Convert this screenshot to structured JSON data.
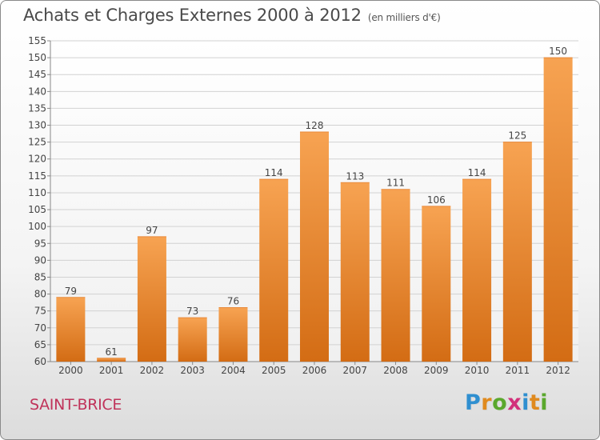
{
  "title": "Achats et Charges Externes 2000 à 2012",
  "subtitle": "(en milliers d'€)",
  "city": "SAINT-BRICE",
  "logo": {
    "text": "Proxiti",
    "letters": [
      {
        "ch": "P",
        "color": "#2f8fd0"
      },
      {
        "ch": "r",
        "color": "#e08a1e"
      },
      {
        "ch": "o",
        "color": "#5aa82d"
      },
      {
        "ch": "x",
        "color": "#d22f7a"
      },
      {
        "ch": "i",
        "color": "#2f8fd0"
      },
      {
        "ch": "t",
        "color": "#e08a1e"
      },
      {
        "ch": "i",
        "color": "#5aa82d"
      }
    ]
  },
  "colors": {
    "bar_top": "#f7a352",
    "bar_bottom": "#d36c14",
    "grid": "#d2d2d2",
    "axis_text": "#444444",
    "city_text": "#c0335a"
  },
  "chart_data": {
    "type": "bar",
    "title": "Achats et Charges Externes 2000 à 2012",
    "subtitle": "(en milliers d'€)",
    "categories": [
      "2000",
      "2001",
      "2002",
      "2003",
      "2004",
      "2005",
      "2006",
      "2007",
      "2008",
      "2009",
      "2010",
      "2011",
      "2012"
    ],
    "values": [
      79,
      61,
      97,
      73,
      76,
      114,
      128,
      113,
      111,
      106,
      114,
      125,
      150
    ],
    "ylim": [
      60,
      155
    ],
    "yticks": [
      60,
      65,
      70,
      75,
      80,
      85,
      90,
      95,
      100,
      105,
      110,
      115,
      120,
      125,
      130,
      135,
      140,
      145,
      150,
      155
    ],
    "grid": true,
    "data_labels": true
  }
}
